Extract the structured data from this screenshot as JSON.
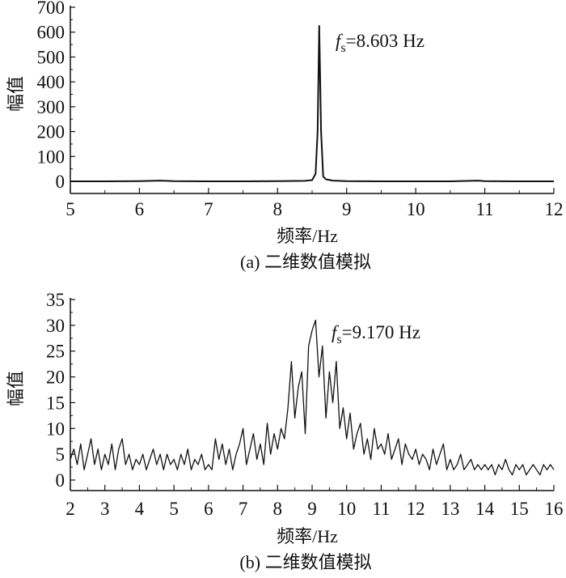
{
  "chart_data": [
    {
      "type": "line",
      "xlabel": "频率/Hz",
      "ylabel": "幅值",
      "caption": "(a) 二维数值模拟",
      "annotation": {
        "f": "f",
        "sub": "s",
        "text": "=8.603 Hz"
      },
      "xlim": [
        5,
        12
      ],
      "ylim": [
        0,
        700
      ],
      "xticks": [
        5,
        6,
        7,
        8,
        9,
        10,
        11,
        12
      ],
      "yticks": [
        0,
        100,
        200,
        300,
        400,
        500,
        600,
        700
      ],
      "grid": false,
      "color": "#111111",
      "x": [
        5,
        5.5,
        6,
        6.3,
        6.5,
        7,
        7.5,
        8,
        8.4,
        8.5,
        8.55,
        8.58,
        8.603,
        8.63,
        8.66,
        8.7,
        8.8,
        9,
        9.5,
        10,
        10.5,
        10.9,
        11,
        11.5,
        12
      ],
      "y": [
        0,
        0,
        1,
        3,
        1,
        0,
        0,
        1,
        2,
        5,
        30,
        200,
        625,
        200,
        20,
        8,
        3,
        1,
        0,
        0,
        0,
        3,
        1,
        0,
        0
      ]
    },
    {
      "type": "line",
      "xlabel": "频率/Hz",
      "ylabel": "幅值",
      "caption": "(b) 二维数值模拟",
      "annotation": {
        "f": "f",
        "sub": "s",
        "text": "=9.170 Hz"
      },
      "xlim": [
        2,
        16
      ],
      "ylim": [
        0,
        35
      ],
      "xticks": [
        2,
        3,
        4,
        5,
        6,
        7,
        8,
        9,
        10,
        11,
        12,
        13,
        14,
        15,
        16
      ],
      "yticks": [
        0,
        5,
        10,
        15,
        20,
        25,
        30,
        35
      ],
      "grid": false,
      "color": "#111111",
      "x_start": 2.0,
      "x_step": 0.1,
      "y": [
        4,
        6,
        3,
        7,
        2,
        5,
        8,
        3,
        6,
        2,
        5,
        3,
        7,
        2,
        6,
        8,
        3,
        5,
        2,
        4,
        3,
        5,
        2,
        4,
        6,
        3,
        5,
        2,
        5,
        3,
        4,
        2,
        5,
        3,
        6,
        2,
        4,
        3,
        5,
        2,
        3,
        2,
        8,
        4,
        7,
        3,
        6,
        2,
        5,
        7,
        10,
        3,
        6,
        9,
        4,
        7,
        3,
        11,
        5,
        9,
        6,
        10,
        8,
        14,
        23,
        12,
        18,
        21,
        9,
        26,
        29,
        31,
        20,
        26,
        12,
        21,
        15,
        23,
        10,
        14,
        8,
        13,
        6,
        9,
        11,
        5,
        8,
        4,
        10,
        6,
        7,
        5,
        9,
        4,
        6,
        8,
        3,
        7,
        5,
        4,
        6,
        3,
        5,
        4,
        2,
        6,
        3,
        5,
        7,
        2,
        4,
        2,
        3,
        5,
        2,
        3,
        4,
        2,
        3,
        2,
        3,
        2,
        3,
        1,
        3,
        2,
        4,
        2,
        1,
        3,
        2,
        3,
        1,
        2,
        3,
        2,
        1,
        3,
        2,
        3,
        2
      ]
    }
  ]
}
